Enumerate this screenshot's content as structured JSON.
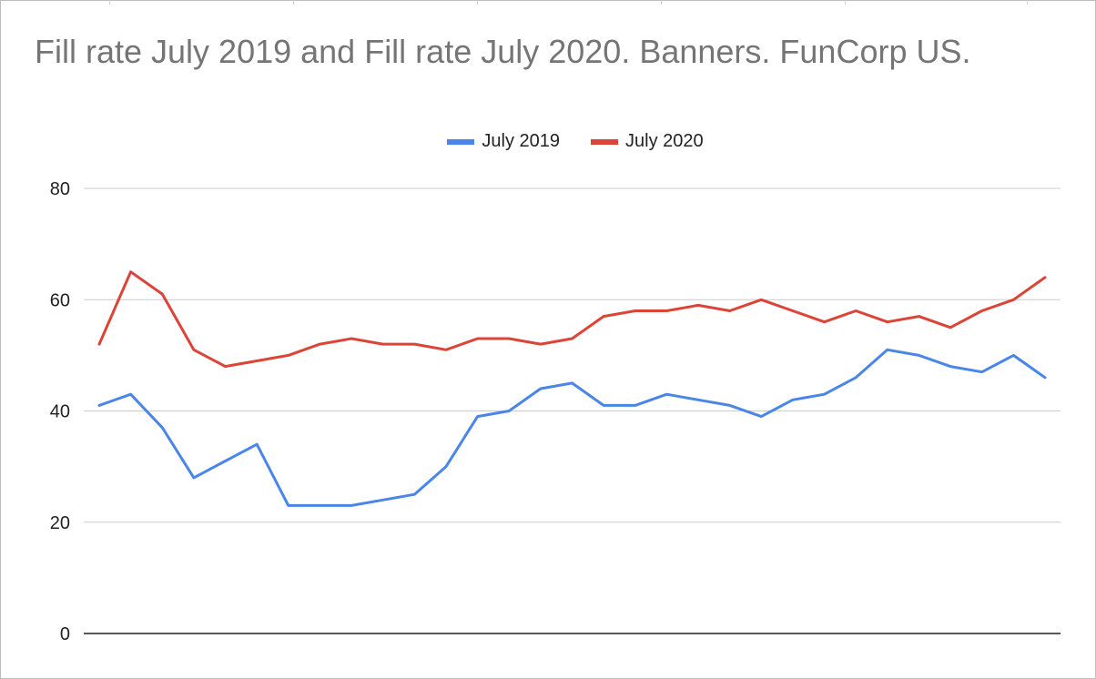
{
  "chart_data": {
    "type": "line",
    "title": "Fill rate July 2019 and Fill rate July 2020. Banners. FunCorp US.",
    "xlabel": "",
    "ylabel": "",
    "ylim": [
      0,
      80
    ],
    "yticks": [
      "0",
      "20",
      "40",
      "60",
      "80"
    ],
    "grid": true,
    "legend_position": "top",
    "x": [
      1,
      2,
      3,
      4,
      5,
      6,
      7,
      8,
      9,
      10,
      11,
      12,
      13,
      14,
      15,
      16,
      17,
      18,
      19,
      20,
      21,
      22,
      23,
      24,
      25,
      26,
      27,
      28,
      29,
      30,
      31
    ],
    "series": [
      {
        "name": "July 2019",
        "color": "#4a86e8",
        "values": [
          41,
          43,
          37,
          28,
          31,
          34,
          23,
          23,
          23,
          24,
          25,
          30,
          39,
          40,
          44,
          45,
          41,
          41,
          43,
          42,
          41,
          39,
          42,
          43,
          46,
          51,
          50,
          48,
          47,
          50,
          46
        ]
      },
      {
        "name": "July 2020",
        "color": "#db4437",
        "values": [
          52,
          65,
          61,
          51,
          48,
          49,
          50,
          52,
          53,
          52,
          52,
          51,
          53,
          53,
          52,
          53,
          57,
          58,
          58,
          59,
          58,
          60,
          58,
          56,
          58,
          56,
          57,
          55,
          58,
          60,
          64
        ]
      }
    ]
  }
}
